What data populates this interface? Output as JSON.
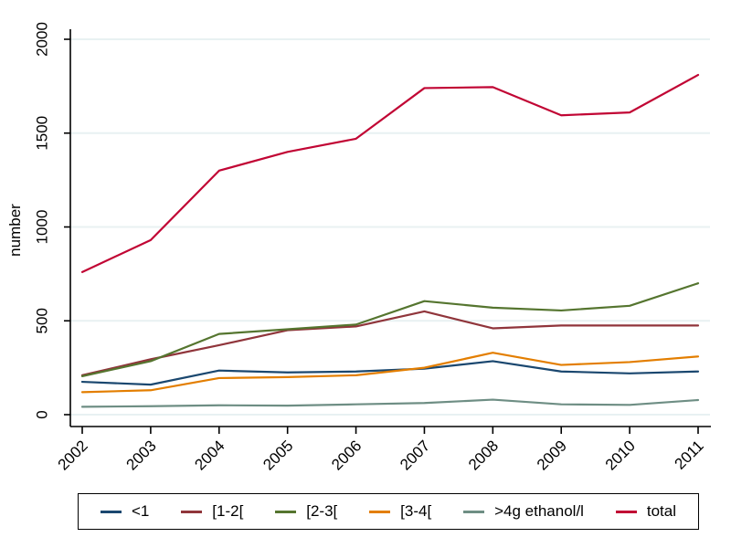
{
  "figure": {
    "background": "#ffffff",
    "text_color": "#000000"
  },
  "chart_data": {
    "type": "line",
    "title": "",
    "xlabel": "",
    "ylabel": "number",
    "categories": [
      "2002",
      "2003",
      "2004",
      "2005",
      "2006",
      "2007",
      "2008",
      "2009",
      "2010",
      "2011"
    ],
    "yticks": [
      0,
      500,
      1000,
      1500,
      2000
    ],
    "ylim": [
      0,
      2100
    ],
    "grid": "horizontal-only",
    "gridline_color": "#e8f1f2",
    "axis_color": "#000000",
    "legend_position": "bottom",
    "series": [
      {
        "name": "<1",
        "color": "#1a476f",
        "values": [
          175,
          160,
          235,
          225,
          230,
          245,
          285,
          230,
          220,
          230
        ]
      },
      {
        "name": "[1-2[",
        "color": "#90353b",
        "values": [
          210,
          295,
          370,
          450,
          470,
          550,
          460,
          475,
          475,
          475
        ]
      },
      {
        "name": "[2-3[",
        "color": "#55752f",
        "values": [
          205,
          285,
          430,
          455,
          480,
          605,
          570,
          555,
          580,
          700
        ]
      },
      {
        "name": "[3-4[",
        "color": "#e37e00",
        "values": [
          120,
          130,
          195,
          200,
          210,
          250,
          330,
          265,
          280,
          310
        ]
      },
      {
        "name": ">4g ethanol/l",
        "color": "#6e8e84",
        "values": [
          42,
          45,
          50,
          48,
          55,
          62,
          80,
          55,
          52,
          78
        ]
      },
      {
        "name": "total",
        "color": "#c10534",
        "values": [
          760,
          930,
          1300,
          1400,
          1470,
          1740,
          1745,
          1595,
          1610,
          1810
        ]
      }
    ]
  }
}
